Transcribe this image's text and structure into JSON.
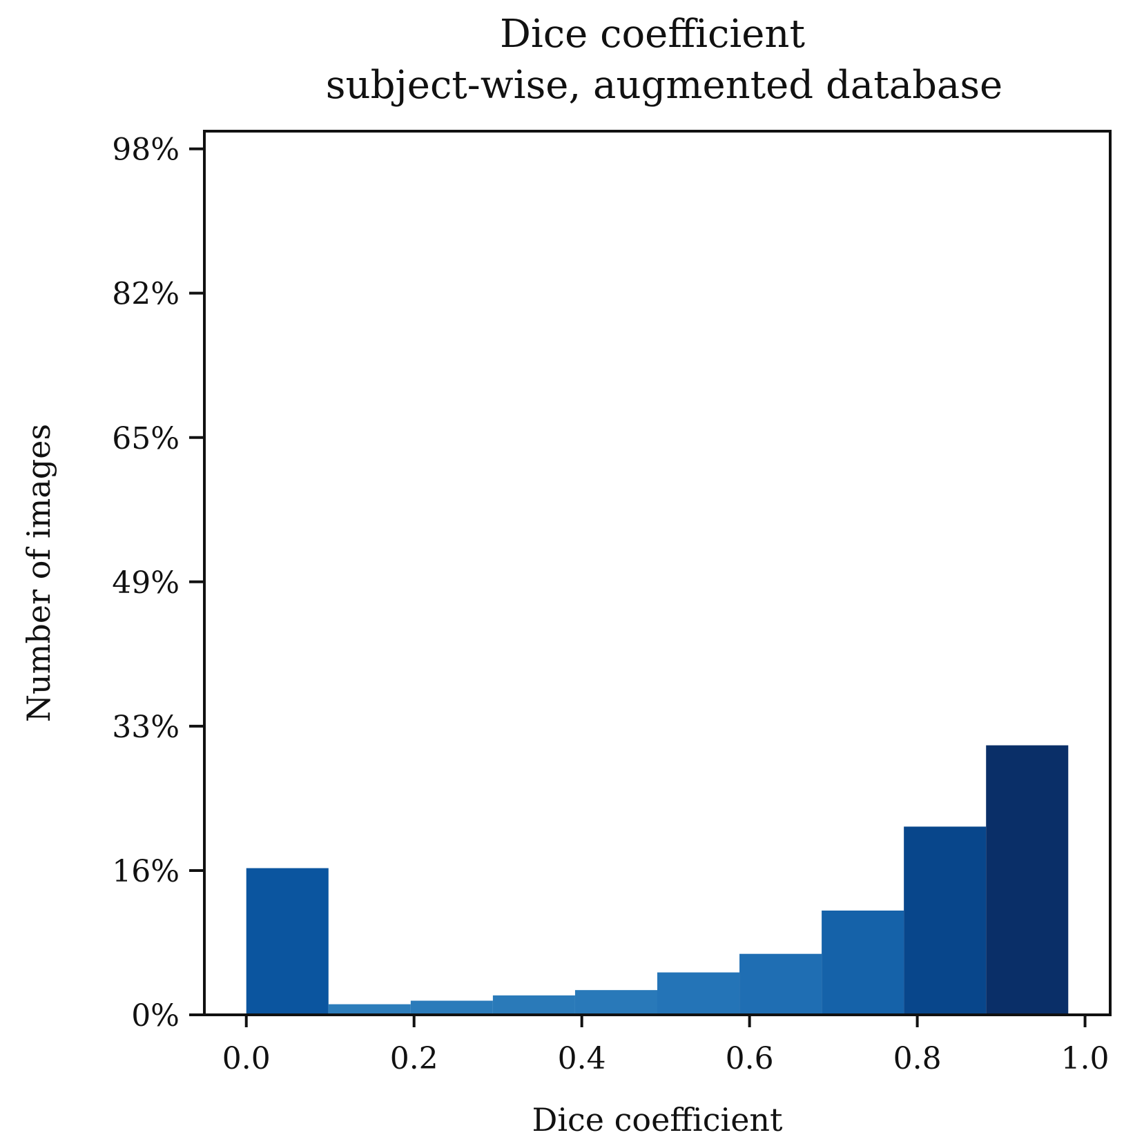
{
  "chart_data": {
    "type": "bar",
    "title_line1": "Dice coefficient",
    "title_line2": "subject-wise, augmented database",
    "xlabel": "Dice coefficient",
    "ylabel": "Number of images",
    "xlim": [
      -0.05,
      1.03
    ],
    "ylim": [
      0,
      1.0
    ],
    "x_ticks": [
      {
        "value": 0.0,
        "label": "0.0"
      },
      {
        "value": 0.2,
        "label": "0.2"
      },
      {
        "value": 0.4,
        "label": "0.4"
      },
      {
        "value": 0.6,
        "label": "0.6"
      },
      {
        "value": 0.8,
        "label": "0.8"
      },
      {
        "value": 1.0,
        "label": "1.0"
      }
    ],
    "y_ticks": [
      {
        "value": 0.0,
        "label": "0%"
      },
      {
        "value": 0.1633,
        "label": "16%"
      },
      {
        "value": 0.3267,
        "label": "33%"
      },
      {
        "value": 0.49,
        "label": "49%"
      },
      {
        "value": 0.6533,
        "label": "65%"
      },
      {
        "value": 0.8167,
        "label": "82%"
      },
      {
        "value": 0.98,
        "label": "98%"
      }
    ],
    "bins": [
      {
        "x0": 0.0,
        "x1": 0.098,
        "value": 0.166,
        "color": "#0b559f"
      },
      {
        "x0": 0.098,
        "x1": 0.196,
        "value": 0.012,
        "color": "#2d7dbb"
      },
      {
        "x0": 0.196,
        "x1": 0.294,
        "value": 0.016,
        "color": "#2b7bba"
      },
      {
        "x0": 0.294,
        "x1": 0.392,
        "value": 0.022,
        "color": "#2a7ab9"
      },
      {
        "x0": 0.392,
        "x1": 0.49,
        "value": 0.028,
        "color": "#2979b9"
      },
      {
        "x0": 0.49,
        "x1": 0.588,
        "value": 0.048,
        "color": "#2474b7"
      },
      {
        "x0": 0.588,
        "x1": 0.686,
        "value": 0.069,
        "color": "#1f6eb3"
      },
      {
        "x0": 0.686,
        "x1": 0.784,
        "value": 0.118,
        "color": "#1562a9"
      },
      {
        "x0": 0.784,
        "x1": 0.882,
        "value": 0.213,
        "color": "#08468b"
      },
      {
        "x0": 0.882,
        "x1": 0.98,
        "value": 0.305,
        "color": "#0a2f68"
      }
    ]
  }
}
